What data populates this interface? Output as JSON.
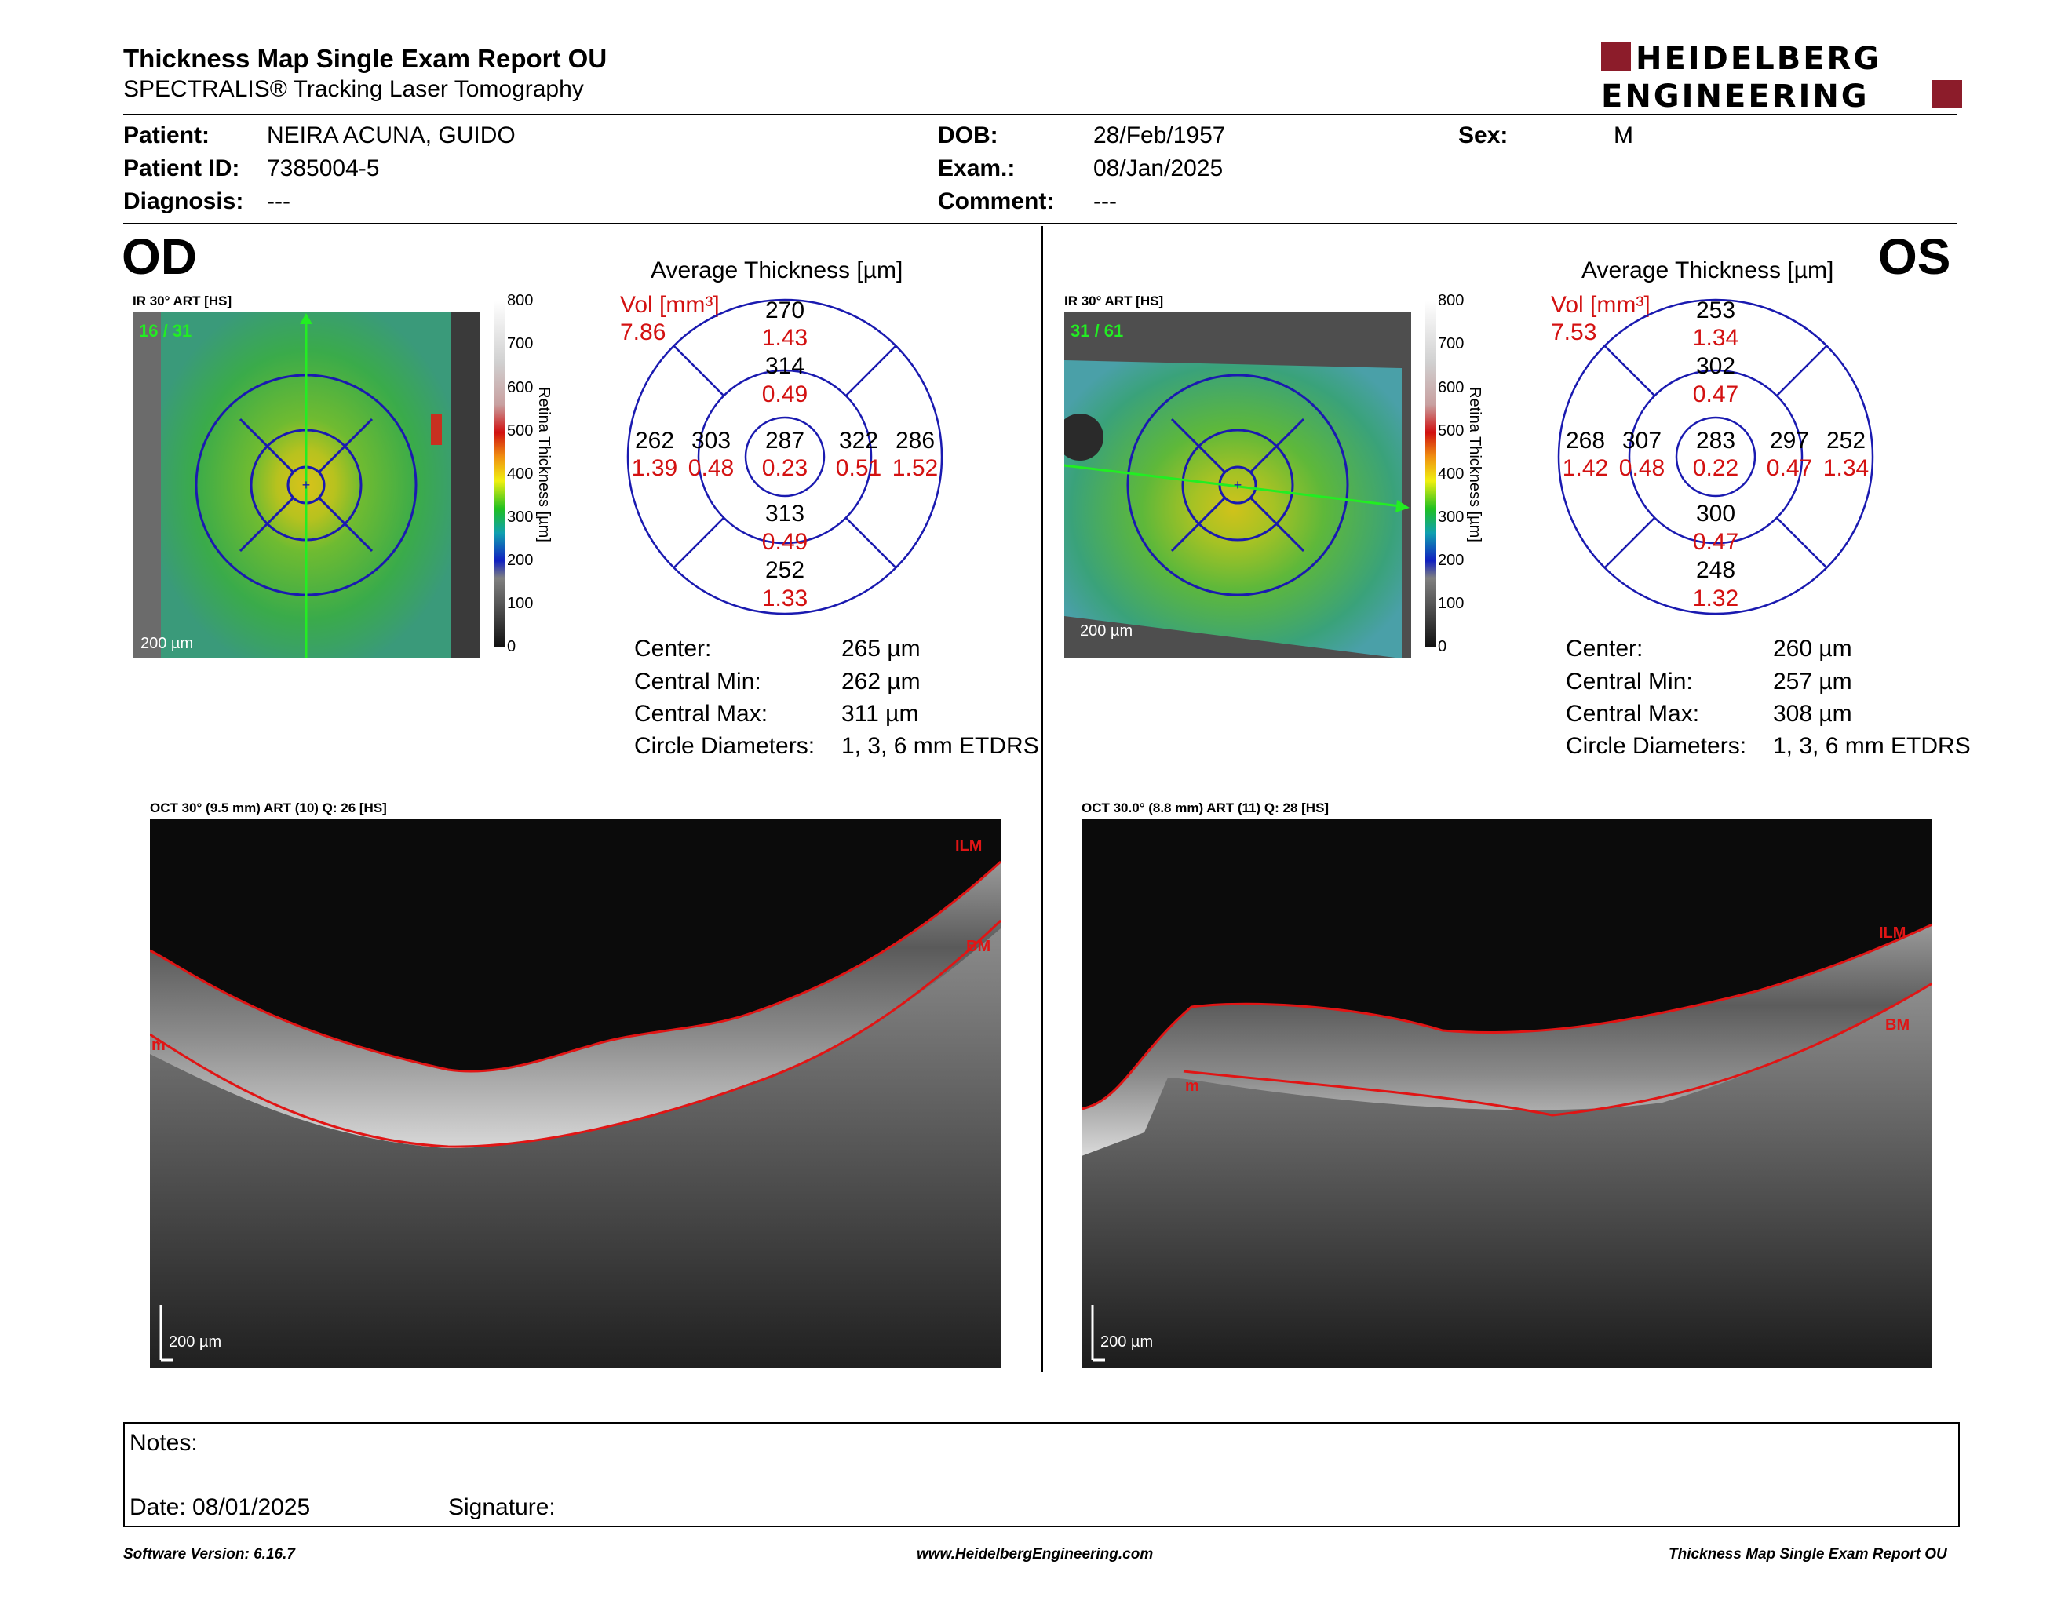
{
  "header": {
    "title": "Thickness Map Single Exam Report OU",
    "subtitle": "SPECTRALIS® Tracking Laser Tomography",
    "logo_line1": "HEIDELBERG",
    "logo_line2": "ENGINEERING",
    "brand_color": "#8c1c2a"
  },
  "patient": {
    "patient_label": "Patient:",
    "patient_value": "NEIRA ACUNA, GUIDO",
    "id_label": "Patient ID:",
    "id_value": "7385004-5",
    "diagnosis_label": "Diagnosis:",
    "diagnosis_value": "---",
    "dob_label": "DOB:",
    "dob_value": "28/Feb/1957",
    "exam_label": "Exam.:",
    "exam_value": "08/Jan/2025",
    "comment_label": "Comment:",
    "comment_value": "---",
    "sex_label": "Sex:",
    "sex_value": "M"
  },
  "colorbar": {
    "ticks": [
      "800",
      "700",
      "600",
      "500",
      "400",
      "300",
      "200",
      "100",
      "0"
    ],
    "title": "Retina Thickness [µm]"
  },
  "od": {
    "eye": "OD",
    "ir_label": "IR 30° ART [HS]",
    "frame": "16 / 31",
    "scale": "200 µm",
    "avg_title": "Average Thickness [µm]",
    "vol_label": "Vol [mm³]",
    "vol_total": "7.86",
    "sectors": {
      "superior_outer": {
        "t": "270",
        "v": "1.43"
      },
      "superior_inner": {
        "t": "314",
        "v": "0.49"
      },
      "nasal_outer": {
        "t": "262",
        "v": "1.39"
      },
      "nasal_inner": {
        "t": "303",
        "v": "0.48"
      },
      "center": {
        "t": "287",
        "v": "0.23"
      },
      "temporal_inner": {
        "t": "322",
        "v": "0.51"
      },
      "temporal_outer": {
        "t": "286",
        "v": "1.52"
      },
      "inferior_inner": {
        "t": "313",
        "v": "0.49"
      },
      "inferior_outer": {
        "t": "252",
        "v": "1.33"
      }
    },
    "stats": [
      {
        "label": "Center:",
        "value": "265 µm"
      },
      {
        "label": "Central Min:",
        "value": "262 µm"
      },
      {
        "label": "Central Max:",
        "value": "311 µm"
      },
      {
        "label": "Circle Diameters:",
        "value": "1, 3, 6 mm ETDRS"
      }
    ],
    "oct_label": "OCT 30° (9.5 mm) ART (10) Q: 26 [HS]",
    "oct_scale": "200 µm",
    "ilm": "ILM",
    "bm": "BM",
    "m": "m"
  },
  "os": {
    "eye": "OS",
    "ir_label": "IR 30° ART [HS]",
    "frame": "31 / 61",
    "scale": "200 µm",
    "avg_title": "Average Thickness [µm]",
    "vol_label": "Vol [mm³]",
    "vol_total": "7.53",
    "sectors": {
      "superior_outer": {
        "t": "253",
        "v": "1.34"
      },
      "superior_inner": {
        "t": "302",
        "v": "0.47"
      },
      "nasal_outer": {
        "t": "268",
        "v": "1.42"
      },
      "nasal_inner": {
        "t": "307",
        "v": "0.48"
      },
      "center": {
        "t": "283",
        "v": "0.22"
      },
      "temporal_inner": {
        "t": "297",
        "v": "0.47"
      },
      "temporal_outer": {
        "t": "252",
        "v": "1.34"
      },
      "inferior_inner": {
        "t": "300",
        "v": "0.47"
      },
      "inferior_outer": {
        "t": "248",
        "v": "1.32"
      }
    },
    "stats": [
      {
        "label": "Center:",
        "value": "260 µm"
      },
      {
        "label": "Central Min:",
        "value": "257 µm"
      },
      {
        "label": "Central Max:",
        "value": "308 µm"
      },
      {
        "label": "Circle Diameters:",
        "value": "1, 3, 6 mm ETDRS"
      }
    ],
    "oct_label": "OCT 30.0° (8.8 mm) ART (11) Q: 28 [HS]",
    "oct_scale": "200 µm",
    "ilm": "ILM",
    "bm": "BM",
    "m": "m"
  },
  "notes": {
    "notes_label": "Notes:",
    "date_label": "Date: 08/01/2025",
    "signature_label": "Signature:"
  },
  "footer": {
    "software": "Software Version: 6.16.7",
    "website": "www.HeidelbergEngineering.com",
    "report": "Thickness Map Single Exam Report OU"
  }
}
